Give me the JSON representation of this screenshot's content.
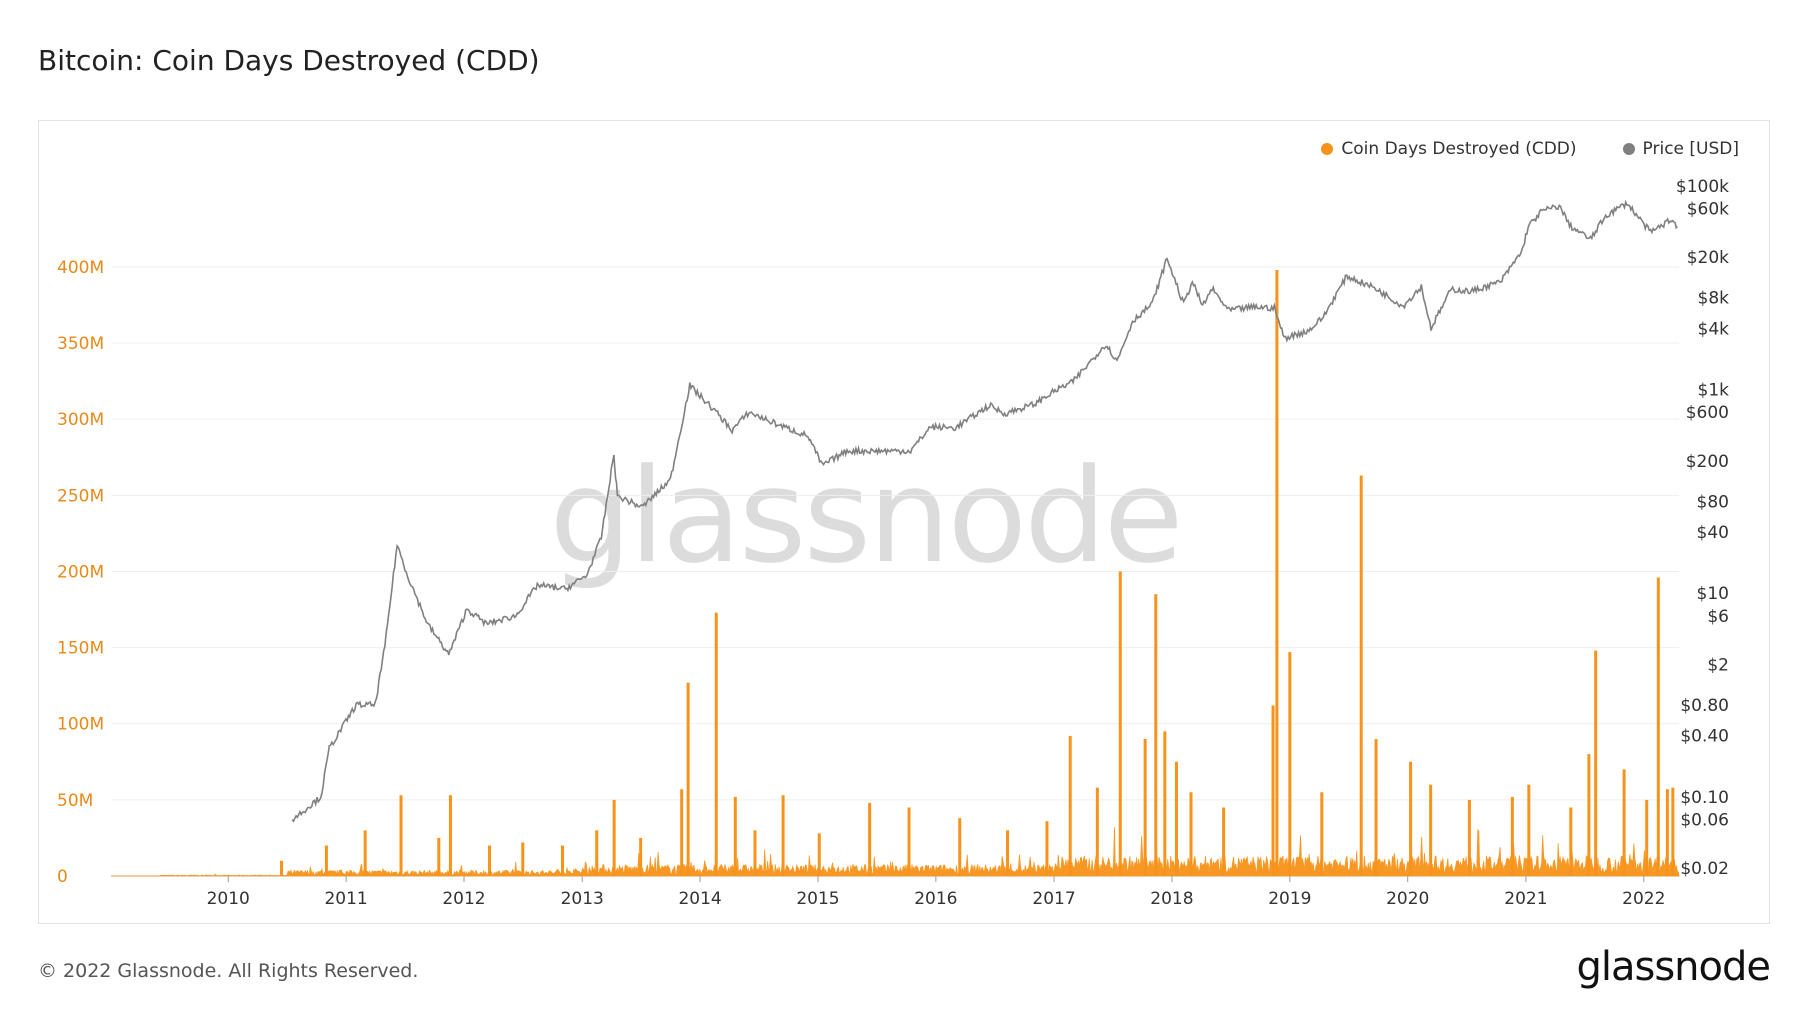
{
  "page": {
    "title": "Bitcoin: Coin Days Destroyed (CDD)",
    "copyright": "© 2022 Glassnode. All Rights Reserved.",
    "logo": "glassnode",
    "watermark": "glassnode"
  },
  "chart_data": {
    "type": "line",
    "legend_placement": "top-right",
    "grid": true,
    "series": [
      {
        "name": "Coin Days Destroyed (CDD)",
        "color": "#f7931a",
        "axis": "left",
        "spikes": [
          [
            "2010-06-15",
            10000000
          ],
          [
            "2010-11-01",
            20000000
          ],
          [
            "2011-03-01",
            30000000
          ],
          [
            "2011-06-20",
            53000000
          ],
          [
            "2011-10-15",
            25000000
          ],
          [
            "2011-11-20",
            53000000
          ],
          [
            "2012-03-20",
            20000000
          ],
          [
            "2012-07-01",
            22000000
          ],
          [
            "2012-11-01",
            20000000
          ],
          [
            "2013-02-15",
            30000000
          ],
          [
            "2013-04-10",
            50000000
          ],
          [
            "2013-07-01",
            25000000
          ],
          [
            "2013-11-05",
            57000000
          ],
          [
            "2013-11-25",
            127000000
          ],
          [
            "2014-02-20",
            173000000
          ],
          [
            "2014-04-20",
            52000000
          ],
          [
            "2014-06-20",
            30000000
          ],
          [
            "2014-09-15",
            53000000
          ],
          [
            "2015-01-05",
            28000000
          ],
          [
            "2015-06-10",
            48000000
          ],
          [
            "2015-10-10",
            45000000
          ],
          [
            "2016-03-15",
            38000000
          ],
          [
            "2016-08-10",
            30000000
          ],
          [
            "2016-12-10",
            36000000
          ],
          [
            "2017-02-20",
            92000000
          ],
          [
            "2017-05-15",
            58000000
          ],
          [
            "2017-07-25",
            200000000
          ],
          [
            "2017-10-10",
            90000000
          ],
          [
            "2017-11-12",
            185000000
          ],
          [
            "2017-12-10",
            95000000
          ],
          [
            "2018-01-15",
            75000000
          ],
          [
            "2018-03-01",
            55000000
          ],
          [
            "2018-06-10",
            45000000
          ],
          [
            "2018-11-10",
            112000000
          ],
          [
            "2018-11-22",
            398000000
          ],
          [
            "2019-01-01",
            147000000
          ],
          [
            "2019-04-10",
            55000000
          ],
          [
            "2019-08-10",
            263000000
          ],
          [
            "2019-09-25",
            90000000
          ],
          [
            "2020-01-10",
            75000000
          ],
          [
            "2020-03-12",
            60000000
          ],
          [
            "2020-07-10",
            50000000
          ],
          [
            "2020-11-20",
            52000000
          ],
          [
            "2021-01-10",
            60000000
          ],
          [
            "2021-05-20",
            45000000
          ],
          [
            "2021-07-15",
            80000000
          ],
          [
            "2021-08-05",
            148000000
          ],
          [
            "2021-11-01",
            70000000
          ],
          [
            "2022-01-10",
            50000000
          ],
          [
            "2022-02-15",
            196000000
          ],
          [
            "2022-03-15",
            57000000
          ],
          [
            "2022-04-01",
            58000000
          ]
        ]
      },
      {
        "name": "Price [USD]",
        "color": "#808080",
        "axis": "right",
        "scale": "log",
        "points": [
          [
            "2010-07-18",
            0.06
          ],
          [
            "2010-08-15",
            0.07
          ],
          [
            "2010-10-15",
            0.1
          ],
          [
            "2010-11-10",
            0.3
          ],
          [
            "2011-02-01",
            0.8
          ],
          [
            "2011-04-01",
            0.8
          ],
          [
            "2011-05-01",
            3.0
          ],
          [
            "2011-06-08",
            30
          ],
          [
            "2011-07-10",
            15
          ],
          [
            "2011-09-10",
            5
          ],
          [
            "2011-11-15",
            2.5
          ],
          [
            "2012-01-10",
            7
          ],
          [
            "2012-03-10",
            5
          ],
          [
            "2012-06-10",
            6
          ],
          [
            "2012-08-15",
            12
          ],
          [
            "2012-11-10",
            11
          ],
          [
            "2013-01-15",
            15
          ],
          [
            "2013-03-01",
            35
          ],
          [
            "2013-04-09",
            230
          ],
          [
            "2013-04-20",
            90
          ],
          [
            "2013-07-05",
            70
          ],
          [
            "2013-10-01",
            130
          ],
          [
            "2013-11-30",
            1100
          ],
          [
            "2014-02-20",
            600
          ],
          [
            "2014-04-10",
            400
          ],
          [
            "2014-06-01",
            600
          ],
          [
            "2014-09-01",
            450
          ],
          [
            "2014-12-01",
            350
          ],
          [
            "2015-01-14",
            180
          ],
          [
            "2015-04-01",
            250
          ],
          [
            "2015-08-01",
            250
          ],
          [
            "2015-10-15",
            250
          ],
          [
            "2015-12-15",
            430
          ],
          [
            "2016-03-01",
            420
          ],
          [
            "2016-06-15",
            700
          ],
          [
            "2016-08-01",
            580
          ],
          [
            "2016-11-01",
            720
          ],
          [
            "2016-12-31",
            960
          ],
          [
            "2017-03-01",
            1200
          ],
          [
            "2017-06-10",
            2800
          ],
          [
            "2017-07-15",
            1900
          ],
          [
            "2017-09-01",
            4700
          ],
          [
            "2017-11-01",
            7000
          ],
          [
            "2017-12-17",
            19500
          ],
          [
            "2018-02-06",
            6900
          ],
          [
            "2018-03-05",
            11500
          ],
          [
            "2018-04-06",
            6600
          ],
          [
            "2018-05-05",
            9800
          ],
          [
            "2018-06-25",
            6000
          ],
          [
            "2018-09-15",
            6500
          ],
          [
            "2018-11-14",
            6300
          ],
          [
            "2018-12-15",
            3200
          ],
          [
            "2019-03-01",
            3800
          ],
          [
            "2019-04-15",
            5200
          ],
          [
            "2019-06-26",
            13000
          ],
          [
            "2019-09-20",
            10000
          ],
          [
            "2019-12-18",
            6600
          ],
          [
            "2020-02-12",
            10300
          ],
          [
            "2020-03-13",
            4000
          ],
          [
            "2020-05-15",
            9700
          ],
          [
            "2020-07-15",
            9200
          ],
          [
            "2020-10-15",
            11500
          ],
          [
            "2020-12-20",
            23000
          ],
          [
            "2021-01-08",
            40000
          ],
          [
            "2021-02-20",
            57000
          ],
          [
            "2021-04-14",
            63500
          ],
          [
            "2021-05-20",
            40000
          ],
          [
            "2021-07-20",
            30000
          ],
          [
            "2021-09-05",
            51000
          ],
          [
            "2021-11-10",
            68000
          ],
          [
            "2022-01-22",
            35000
          ],
          [
            "2022-03-28",
            47000
          ],
          [
            "2022-04-15",
            40000
          ]
        ]
      }
    ],
    "x_axis": {
      "ticks": [
        "2010",
        "2011",
        "2012",
        "2013",
        "2014",
        "2015",
        "2016",
        "2017",
        "2018",
        "2019",
        "2020",
        "2021",
        "2022"
      ],
      "range": [
        "2009-01-03",
        "2022-04-20"
      ]
    },
    "y_left": {
      "range": [
        0,
        440000000
      ],
      "ticks": [
        0,
        50000000,
        100000000,
        150000000,
        200000000,
        250000000,
        300000000,
        350000000,
        400000000
      ],
      "tick_labels": [
        "0",
        "50M",
        "100M",
        "150M",
        "200M",
        "250M",
        "300M",
        "350M",
        "400M"
      ],
      "color": "#e8891a"
    },
    "y_right": {
      "scale": "log",
      "tick_values": [
        100000,
        60000,
        20000,
        8000,
        4000,
        1000,
        600,
        200,
        80,
        40,
        10,
        6,
        2,
        0.8,
        0.4,
        0.1,
        0.06,
        0.02
      ],
      "tick_labels": [
        "$100k",
        "$60k",
        "$20k",
        "$8k",
        "$4k",
        "$1k",
        "$600",
        "$200",
        "$80",
        "$40",
        "$10",
        "$6",
        "$2",
        "$0.80",
        "$0.40",
        "$0.10",
        "$0.06",
        "$0.02"
      ]
    }
  }
}
